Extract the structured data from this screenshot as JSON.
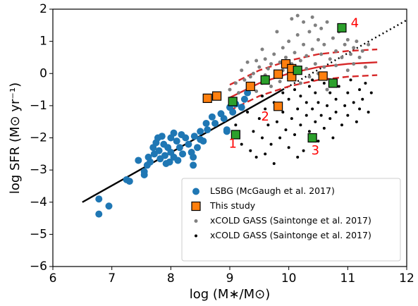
{
  "chart_data": {
    "type": "scatter",
    "xlabel": "log (M∗/M⊙)",
    "ylabel": "log SFR (M⊙ yr⁻¹)",
    "xlim": [
      6,
      12
    ],
    "ylim": [
      -6,
      2
    ],
    "xticks": [
      6,
      7,
      8,
      9,
      10,
      11,
      12
    ],
    "yticks": [
      {
        "value": -6,
        "label": "−6"
      },
      {
        "value": -5,
        "label": "−5"
      },
      {
        "value": -4,
        "label": "−4"
      },
      {
        "value": -3,
        "label": "−3"
      },
      {
        "value": -2,
        "label": "−2"
      },
      {
        "value": -1,
        "label": "−1"
      },
      0,
      1,
      2
    ],
    "legend": "lower right",
    "series": [
      {
        "kind": "line",
        "style": "solid",
        "color": "#000000",
        "x": [
          6.5,
          9.9
        ],
        "values": [
          -4,
          -0.5
        ]
      },
      {
        "kind": "line",
        "style": "dotted",
        "color": "#000000",
        "x": [
          9.9,
          12
        ],
        "values": [
          -0.5,
          1.66
        ]
      },
      {
        "kind": "line",
        "style": "solid",
        "color": "#d62728",
        "x": [
          9,
          9.5,
          10,
          10.5,
          11,
          11.5
        ],
        "values": [
          -0.75,
          -0.3,
          0,
          0.2,
          0.3,
          0.35
        ]
      },
      {
        "kind": "line",
        "style": "dashed",
        "color": "#d62728",
        "x": [
          9,
          9.5,
          10,
          10.5,
          11,
          11.5
        ],
        "values": [
          -0.35,
          0.1,
          0.4,
          0.6,
          0.7,
          0.75
        ]
      },
      {
        "kind": "line",
        "style": "dashed",
        "color": "#d62728",
        "x": [
          9,
          9.5,
          10,
          10.5,
          11,
          11.5
        ],
        "values": [
          -1.15,
          -0.7,
          -0.4,
          -0.2,
          -0.1,
          -0.05
        ]
      },
      {
        "kind": "points",
        "marker": "circle",
        "size": 2.5,
        "name": "xCOLD GASS (Saintonge et al. 2017)",
        "color": "#808080",
        "x": [
          9.0,
          9.1,
          9.15,
          9.2,
          9.25,
          9.3,
          9.35,
          9.4,
          9.45,
          9.5,
          9.55,
          9.6,
          9.6,
          9.65,
          9.7,
          9.7,
          9.75,
          9.8,
          9.85,
          9.85,
          9.9,
          9.9,
          9.95,
          10.0,
          10.0,
          10.05,
          10.05,
          10.1,
          10.1,
          10.15,
          10.2,
          10.2,
          10.25,
          10.25,
          10.3,
          10.3,
          10.35,
          10.35,
          10.4,
          10.4,
          10.45,
          10.5,
          10.5,
          10.55,
          10.55,
          10.6,
          10.6,
          10.65,
          10.7,
          10.7,
          10.75,
          10.8,
          10.8,
          10.85,
          10.9,
          10.95,
          11.0,
          11.0,
          11.05,
          11.1,
          11.1,
          11.15,
          11.2,
          11.25,
          11.3,
          11.35,
          9.55,
          9.8,
          10.15,
          10.45,
          10.65,
          9.45
        ],
        "values": [
          -0.5,
          -0.3,
          -0.6,
          0.1,
          -0.2,
          0.35,
          -0.1,
          0.0,
          -0.55,
          0.2,
          -0.3,
          0.45,
          -0.05,
          0.15,
          -0.4,
          0.3,
          0.6,
          0.05,
          0.35,
          -0.25,
          0.8,
          0.1,
          0.5,
          1.0,
          -0.15,
          0.3,
          1.7,
          0.65,
          0.0,
          1.2,
          0.4,
          -0.3,
          0.9,
          1.6,
          0.15,
          0.55,
          1.3,
          -0.1,
          0.75,
          1.75,
          0.3,
          1.05,
          0.0,
          0.6,
          1.4,
          0.2,
          0.9,
          1.6,
          0.45,
          -0.2,
          1.1,
          0.7,
          0.25,
          1.3,
          0.5,
          0.9,
          0.1,
          1.05,
          0.6,
          0.8,
          0.3,
          1.0,
          0.5,
          0.7,
          0.2,
          0.9,
          0.75,
          1.3,
          1.8,
          1.5,
          -0.5,
          0.4
        ]
      },
      {
        "kind": "points",
        "marker": "circle",
        "size": 2,
        "name": "xCOLD GASS (Saintonge et al. 2017)",
        "color": "#000000",
        "x": [
          9.1,
          9.2,
          9.3,
          9.35,
          9.4,
          9.45,
          9.5,
          9.55,
          9.6,
          9.6,
          9.65,
          9.7,
          9.75,
          9.75,
          9.8,
          9.85,
          9.9,
          9.9,
          9.95,
          10.0,
          10.0,
          10.05,
          10.1,
          10.1,
          10.15,
          10.2,
          10.2,
          10.25,
          10.3,
          10.3,
          10.35,
          10.35,
          10.4,
          10.45,
          10.45,
          10.5,
          10.5,
          10.55,
          10.6,
          10.6,
          10.65,
          10.7,
          10.7,
          10.75,
          10.8,
          10.8,
          10.85,
          10.9,
          10.95,
          11.0,
          11.0,
          11.05,
          11.1,
          11.15,
          11.2,
          11.2,
          11.25,
          11.3,
          11.35,
          11.4,
          9.55,
          9.85,
          10.15,
          10.4
        ],
        "values": [
          -1.6,
          -2.2,
          -1.2,
          -2.4,
          -1.8,
          -2.6,
          -1.4,
          -2.0,
          -1.1,
          -2.5,
          -1.6,
          -2.2,
          -0.9,
          -2.8,
          -1.5,
          -2.0,
          -1.2,
          -0.6,
          -1.75,
          -0.8,
          -2.3,
          -1.4,
          -0.5,
          -1.9,
          -1.1,
          -0.7,
          -1.6,
          -2.4,
          -0.9,
          -1.3,
          -0.4,
          -1.8,
          -1.1,
          -0.6,
          -1.5,
          -2.1,
          -0.9,
          -1.3,
          -0.3,
          -1.7,
          -1.0,
          -0.6,
          -1.4,
          -2.0,
          -0.8,
          -1.2,
          -0.4,
          -1.6,
          -1.0,
          -0.6,
          -1.3,
          -0.2,
          -0.9,
          -1.5,
          -0.5,
          -1.1,
          -0.8,
          -0.3,
          -1.2,
          -0.6,
          -0.7,
          -1.0,
          -2.6,
          -0.2
        ]
      },
      {
        "kind": "points",
        "marker": "circle",
        "size": 5,
        "name": "LSBG (McGaugh et al. 2017)",
        "color": "#1f77b4",
        "x": [
          6.78,
          6.78,
          6.95,
          7.25,
          7.3,
          7.45,
          7.55,
          7.55,
          7.6,
          7.62,
          7.65,
          7.7,
          7.72,
          7.75,
          7.78,
          7.8,
          7.82,
          7.85,
          7.88,
          7.9,
          7.92,
          7.95,
          7.98,
          8.0,
          8.0,
          8.05,
          8.05,
          8.1,
          8.12,
          8.15,
          8.18,
          8.2,
          8.25,
          8.3,
          8.35,
          8.38,
          8.38,
          8.4,
          8.45,
          8.5,
          8.55,
          8.6,
          8.62,
          8.7,
          8.75,
          8.85,
          8.9,
          8.95,
          9.0,
          9.05,
          9.1,
          9.2,
          9.25,
          9.3,
          8.95,
          8.5
        ],
        "values": [
          -4.37,
          -3.9,
          -4.12,
          -3.3,
          -3.35,
          -2.7,
          -3.05,
          -3.15,
          -2.85,
          -2.6,
          -2.75,
          -2.3,
          -2.5,
          -2.15,
          -2.0,
          -2.4,
          -2.65,
          -1.95,
          -2.2,
          -2.55,
          -2.8,
          -2.3,
          -2.75,
          -2.0,
          -2.45,
          -2.6,
          -1.85,
          -2.1,
          -2.7,
          -2.3,
          -1.9,
          -2.5,
          -2.0,
          -2.2,
          -2.45,
          -2.85,
          -2.6,
          -1.95,
          -2.3,
          -1.8,
          -2.1,
          -1.55,
          -1.75,
          -1.35,
          -1.55,
          -1.25,
          -1.4,
          -1.75,
          -1.05,
          -1.2,
          -0.95,
          -1.05,
          -0.8,
          -0.6,
          -1.8,
          -2.05
        ]
      },
      {
        "kind": "points",
        "marker": "square",
        "size": 12,
        "name": "This study",
        "color": "#ff7f0e",
        "x": [
          8.62,
          8.78,
          9.35,
          9.82,
          9.95,
          10.05,
          10.05,
          9.82,
          10.58
        ],
        "values": [
          -0.77,
          -0.7,
          -0.4,
          -0.02,
          0.3,
          0.15,
          -0.1,
          -1.02,
          -0.08
        ]
      },
      {
        "kind": "points",
        "marker": "square",
        "size": 12,
        "name": "This study",
        "color": "#2ca02c",
        "x": [
          9.05,
          9.1,
          9.6,
          10.15,
          10.4,
          10.75,
          10.9
        ],
        "values": [
          -0.87,
          -1.9,
          -0.2,
          0.1,
          -2.0,
          -0.3,
          1.42
        ]
      }
    ],
    "legend_order": [
      7,
      8,
      5,
      6,
      4
    ],
    "annotations": [
      {
        "text": "1",
        "x": 9.05,
        "y": -2.2,
        "color": "#ff0000"
      },
      {
        "text": "2",
        "x": 9.6,
        "y": -1.35,
        "color": "#ff0000"
      },
      {
        "text": "3",
        "x": 10.45,
        "y": -2.4,
        "color": "#ff0000"
      },
      {
        "text": "4",
        "x": 11.12,
        "y": 1.55,
        "color": "#ff0000"
      }
    ]
  }
}
